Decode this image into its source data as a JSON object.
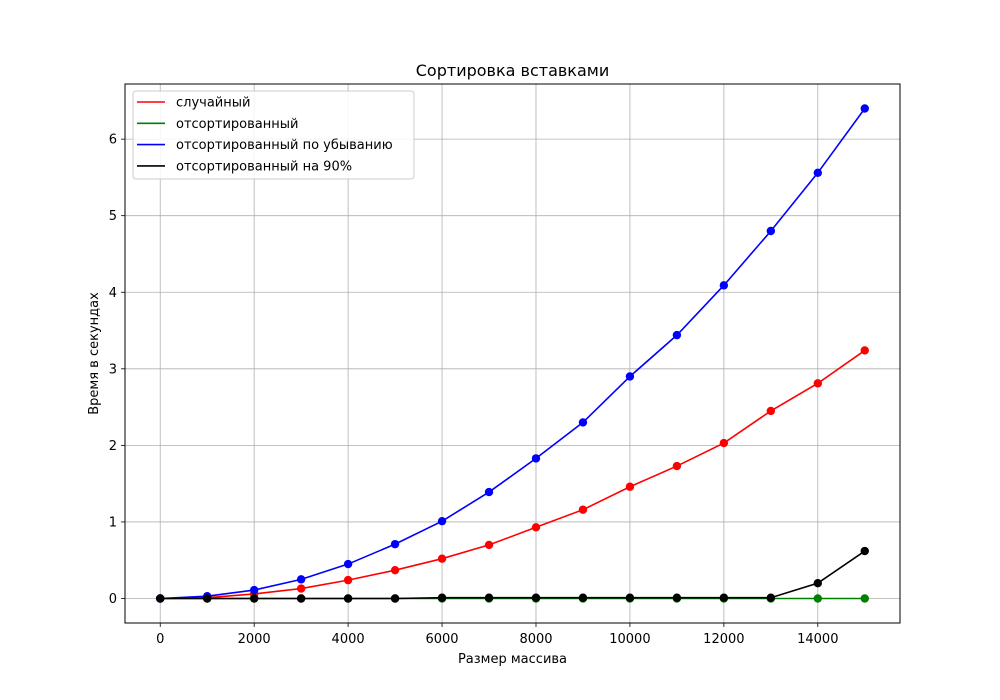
{
  "chart_data": {
    "type": "line",
    "title": "Сортировка вставками",
    "xlabel": "Размер массива",
    "ylabel": "Время в секундах",
    "xlim": [
      -750,
      15750
    ],
    "ylim": [
      -0.32,
      6.72
    ],
    "x_ticks": [
      0,
      2000,
      4000,
      6000,
      8000,
      10000,
      12000,
      14000
    ],
    "y_ticks": [
      0,
      1,
      2,
      3,
      4,
      5,
      6
    ],
    "x": [
      0,
      1000,
      2000,
      3000,
      4000,
      5000,
      6000,
      7000,
      8000,
      9000,
      10000,
      11000,
      12000,
      13000,
      14000,
      15000
    ],
    "grid": true,
    "legend_position": "top-left",
    "markers": true,
    "series": [
      {
        "name": "случайный",
        "color": "#ff0000",
        "values": [
          0,
          0.01,
          0.06,
          0.13,
          0.24,
          0.37,
          0.52,
          0.7,
          0.93,
          1.16,
          1.46,
          1.73,
          2.03,
          2.45,
          2.81,
          3.24
        ]
      },
      {
        "name": "отсортированный",
        "color": "#008000",
        "values": [
          0,
          0,
          0,
          0,
          0,
          0,
          0,
          0,
          0,
          0,
          0,
          0,
          0,
          0,
          0,
          0
        ]
      },
      {
        "name": "отсортированный по убыванию",
        "color": "#0000ff",
        "values": [
          0,
          0.03,
          0.11,
          0.25,
          0.45,
          0.71,
          1.01,
          1.39,
          1.83,
          2.3,
          2.9,
          3.44,
          4.09,
          4.8,
          5.56,
          6.4
        ]
      },
      {
        "name": "отсортированный на 90%",
        "color": "#000000",
        "values": [
          0,
          0,
          0,
          0,
          0,
          0,
          0.01,
          0.01,
          0.01,
          0.01,
          0.01,
          0.01,
          0.01,
          0.01,
          0.2,
          0.62
        ]
      }
    ]
  }
}
